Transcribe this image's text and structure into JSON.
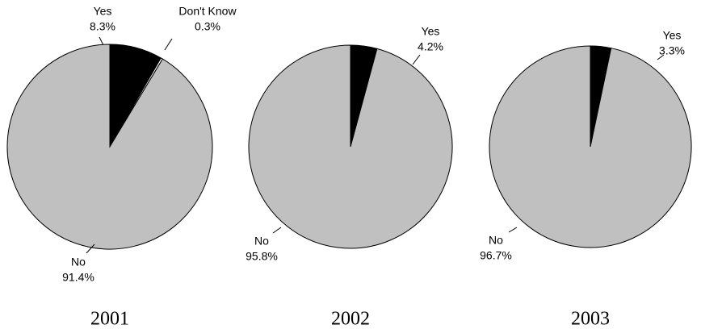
{
  "chart_data": [
    {
      "type": "pie",
      "title": "2001",
      "categories": [
        "Yes",
        "Don't Know",
        "No"
      ],
      "values": [
        8.3,
        0.3,
        91.4
      ],
      "value_labels": [
        "8.3%",
        "0.3%",
        "91.4%"
      ],
      "colors": [
        "#000000",
        "#ffffff",
        "#c0c0c0"
      ]
    },
    {
      "type": "pie",
      "title": "2002",
      "categories": [
        "Yes",
        "No"
      ],
      "values": [
        4.2,
        95.8
      ],
      "value_labels": [
        "4.2%",
        "95.8%"
      ],
      "colors": [
        "#000000",
        "#c0c0c0"
      ]
    },
    {
      "type": "pie",
      "title": "2003",
      "categories": [
        "Yes",
        "No"
      ],
      "values": [
        3.3,
        96.7
      ],
      "value_labels": [
        "3.3%",
        "96.7%"
      ],
      "colors": [
        "#000000",
        "#c0c0c0"
      ]
    }
  ]
}
